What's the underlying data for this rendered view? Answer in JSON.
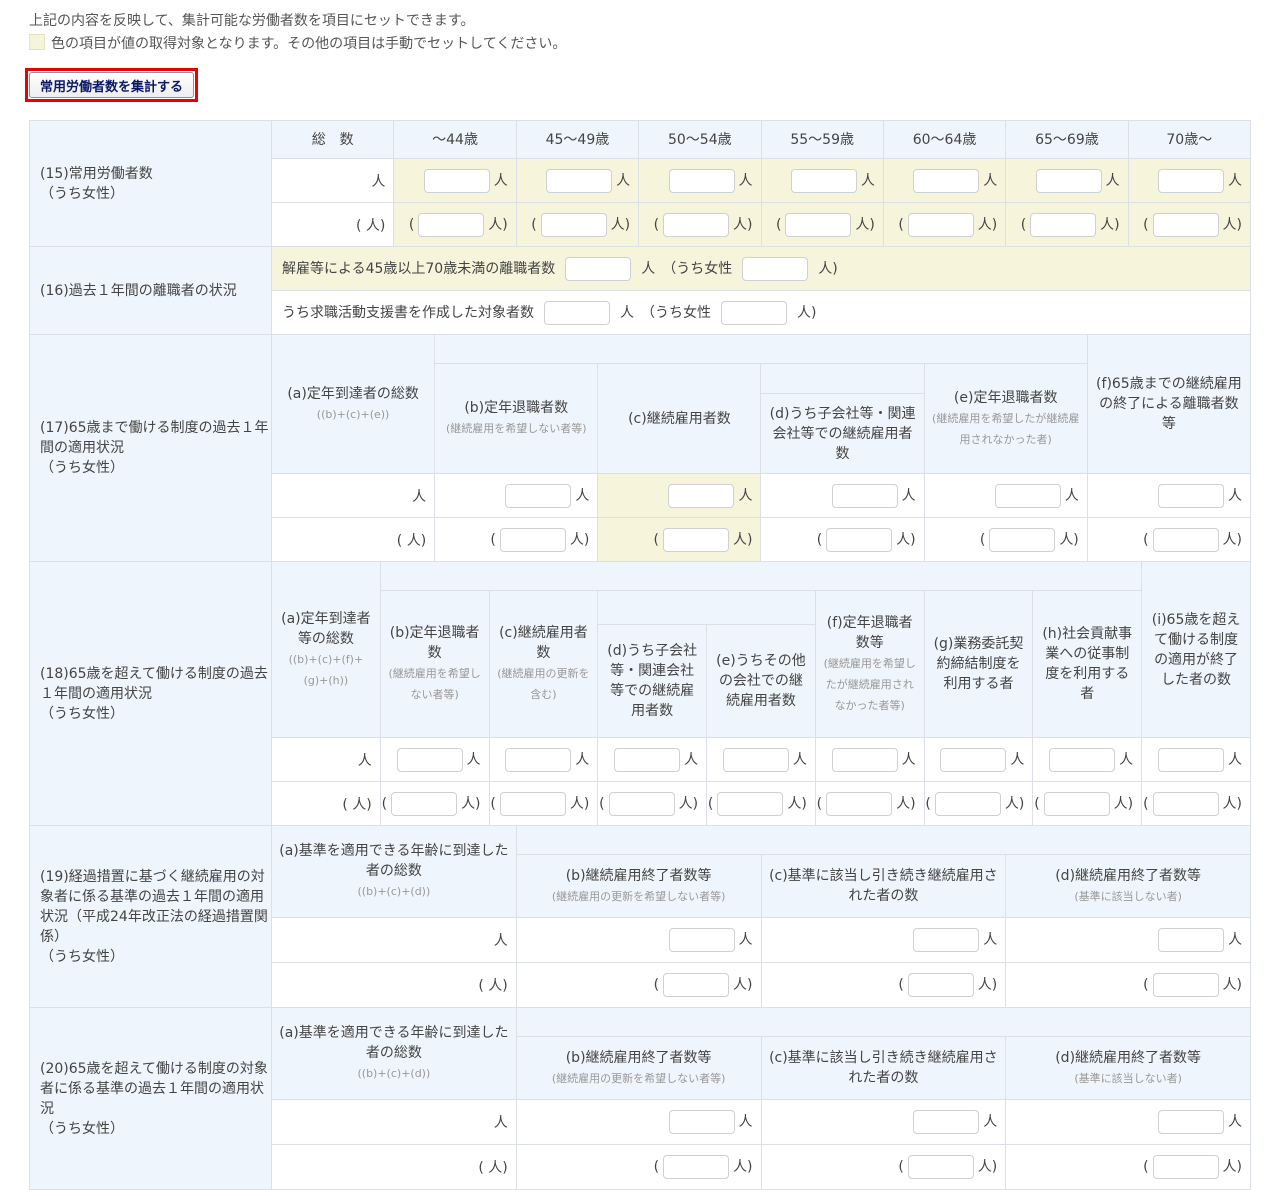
{
  "intro": {
    "line1": "上記の内容を反映して、集計可能な労働者数を項目にセットできます。",
    "line2": "色の項目が値の取得対象となります。その他の項目は手動でセットしてください。"
  },
  "aggregate_button": "常用労働者数を集計する",
  "units": {
    "person": "人",
    "open": "(",
    "close": "人)",
    "total_female": "( 人)"
  },
  "colors": {
    "header_bg": "#eef5fc",
    "target_bg": "#f6f5dc",
    "highlight_border": "#ee0000",
    "button_text": "#0c1a66"
  },
  "s15": {
    "label": "(15)常用労働者数",
    "sub": "（うち女性）",
    "columns": [
      "総　数",
      "～44歳",
      "45～49歳",
      "50～54歳",
      "55～59歳",
      "60～64歳",
      "65～69歳",
      "70歳～"
    ]
  },
  "s16": {
    "label": "(16)過去１年間の離職者の状況",
    "row1": "解雇等による45歳以上70歳未満の離職者数",
    "row2": "うち求職活動支援書を作成した対象者数",
    "unit": "人",
    "female": "（うち女性",
    "close": "人)"
  },
  "s17": {
    "label": "(17)65歳まで働ける制度の過去１年間の適用状況",
    "sub": "（うち女性）",
    "cols": [
      {
        "title": "(a)定年到達者の総数",
        "note": "((b)+(c)+(e))"
      },
      {
        "title": "(b)定年退職者数",
        "note": "(継続雇用を希望しない者等)"
      },
      {
        "title": "(c)継続雇用者数"
      },
      {
        "title": "(d)うち子会社等・関連会社等での継続雇用者数"
      },
      {
        "title": "(e)定年退職者数",
        "note": "(継続雇用を希望したが継続雇用されなかった者)"
      },
      {
        "title": "(f)65歳までの継続雇用の終了による離職者数等"
      }
    ]
  },
  "s18": {
    "label": "(18)65歳を超えて働ける制度の過去１年間の適用状況",
    "sub": "（うち女性）",
    "cols": [
      {
        "title": "(a)定年到達者等の総数",
        "note": "((b)+(c)+(f)+(g)+(h))"
      },
      {
        "title": "(b)定年退職者数",
        "note": "(継続雇用を希望しない者等)"
      },
      {
        "title": "(c)継続雇用者数",
        "note": "(継続雇用の更新を含む)"
      },
      {
        "title": "(d)うち子会社等・関連会社等での継続雇用者数"
      },
      {
        "title": "(e)うちその他の会社での継続雇用者数"
      },
      {
        "title": "(f)定年退職者数等",
        "note": "(継続雇用を希望したが継続雇用されなかった者等)"
      },
      {
        "title": "(g)業務委託契約締結制度を利用する者"
      },
      {
        "title": "(h)社会貢献事業への従事制度を利用する者"
      },
      {
        "title": "(i)65歳を超えて働ける制度の適用が終了した者の数"
      }
    ]
  },
  "s19": {
    "label": "(19)経過措置に基づく継続雇用の対象者に係る基準の過去１年間の適用状況（平成24年改正法の経過措置関係）",
    "sub": "（うち女性）",
    "cols": [
      {
        "title": "(a)基準を適用できる年齢に到達した者の総数",
        "note": "((b)+(c)+(d))"
      },
      {
        "title": "(b)継続雇用終了者数等",
        "note": "(継続雇用の更新を希望しない者等)"
      },
      {
        "title": "(c)基準に該当し引き続き継続雇用された者の数"
      },
      {
        "title": "(d)継続雇用終了者数等",
        "note": "(基準に該当しない者)"
      }
    ]
  },
  "s20": {
    "label": "(20)65歳を超えて働ける制度の対象者に係る基準の過去１年間の適用状況",
    "sub": "（うち女性）",
    "cols": [
      {
        "title": "(a)基準を適用できる年齢に到達した者の総数",
        "note": "((b)+(c)+(d))"
      },
      {
        "title": "(b)継続雇用終了者数等",
        "note": "(継続雇用の更新を希望しない者等)"
      },
      {
        "title": "(c)基準に該当し引き続き継続雇用された者の数"
      },
      {
        "title": "(d)継続雇用終了者数等",
        "note": "(基準に該当しない者)"
      }
    ]
  }
}
